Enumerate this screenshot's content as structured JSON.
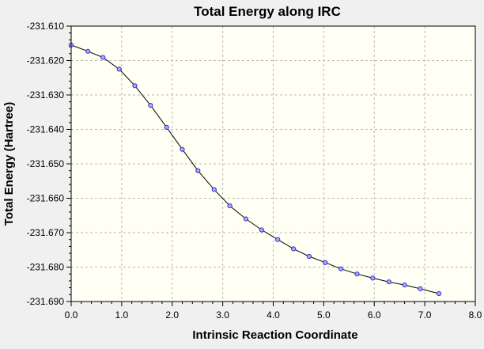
{
  "chart_data": {
    "type": "line",
    "title": "Total Energy along IRC",
    "xlabel": "Intrinsic Reaction Coordinate",
    "ylabel": "Total Energy (Hartree)",
    "xlim": [
      0.0,
      8.0
    ],
    "ylim": [
      -231.69,
      -231.61
    ],
    "x_ticks": [
      "0.0",
      "1.0",
      "2.0",
      "3.0",
      "4.0",
      "5.0",
      "6.0",
      "7.0",
      "8.0"
    ],
    "y_ticks": [
      "-231.610",
      "-231.620",
      "-231.630",
      "-231.640",
      "-231.650",
      "-231.660",
      "-231.670",
      "-231.680",
      "-231.690"
    ],
    "grid": true,
    "legend": "none",
    "colors": {
      "plot_background": "#fffff4",
      "frame_background": "#f0f0f0",
      "line": "#000000",
      "marker_fill": "#aaaaff",
      "marker_stroke": "#3333cc",
      "grid": "#b8b8b8"
    },
    "series": [
      {
        "x": [
          0.0,
          0.33,
          0.63,
          0.95,
          1.26,
          1.57,
          1.89,
          2.2,
          2.51,
          2.83,
          3.14,
          3.46,
          3.77,
          4.09,
          4.4,
          4.71,
          5.03,
          5.34,
          5.66,
          5.97,
          6.29,
          6.6,
          6.91,
          7.28
        ],
        "y": [
          -231.6155,
          -231.6173,
          -231.6191,
          -231.6225,
          -231.6273,
          -231.633,
          -231.6394,
          -231.6458,
          -231.652,
          -231.6575,
          -231.6622,
          -231.666,
          -231.6692,
          -231.672,
          -231.6747,
          -231.6769,
          -231.6787,
          -231.6805,
          -231.682,
          -231.6832,
          -231.6843,
          -231.6852,
          -231.6863,
          -231.6877
        ]
      }
    ]
  }
}
